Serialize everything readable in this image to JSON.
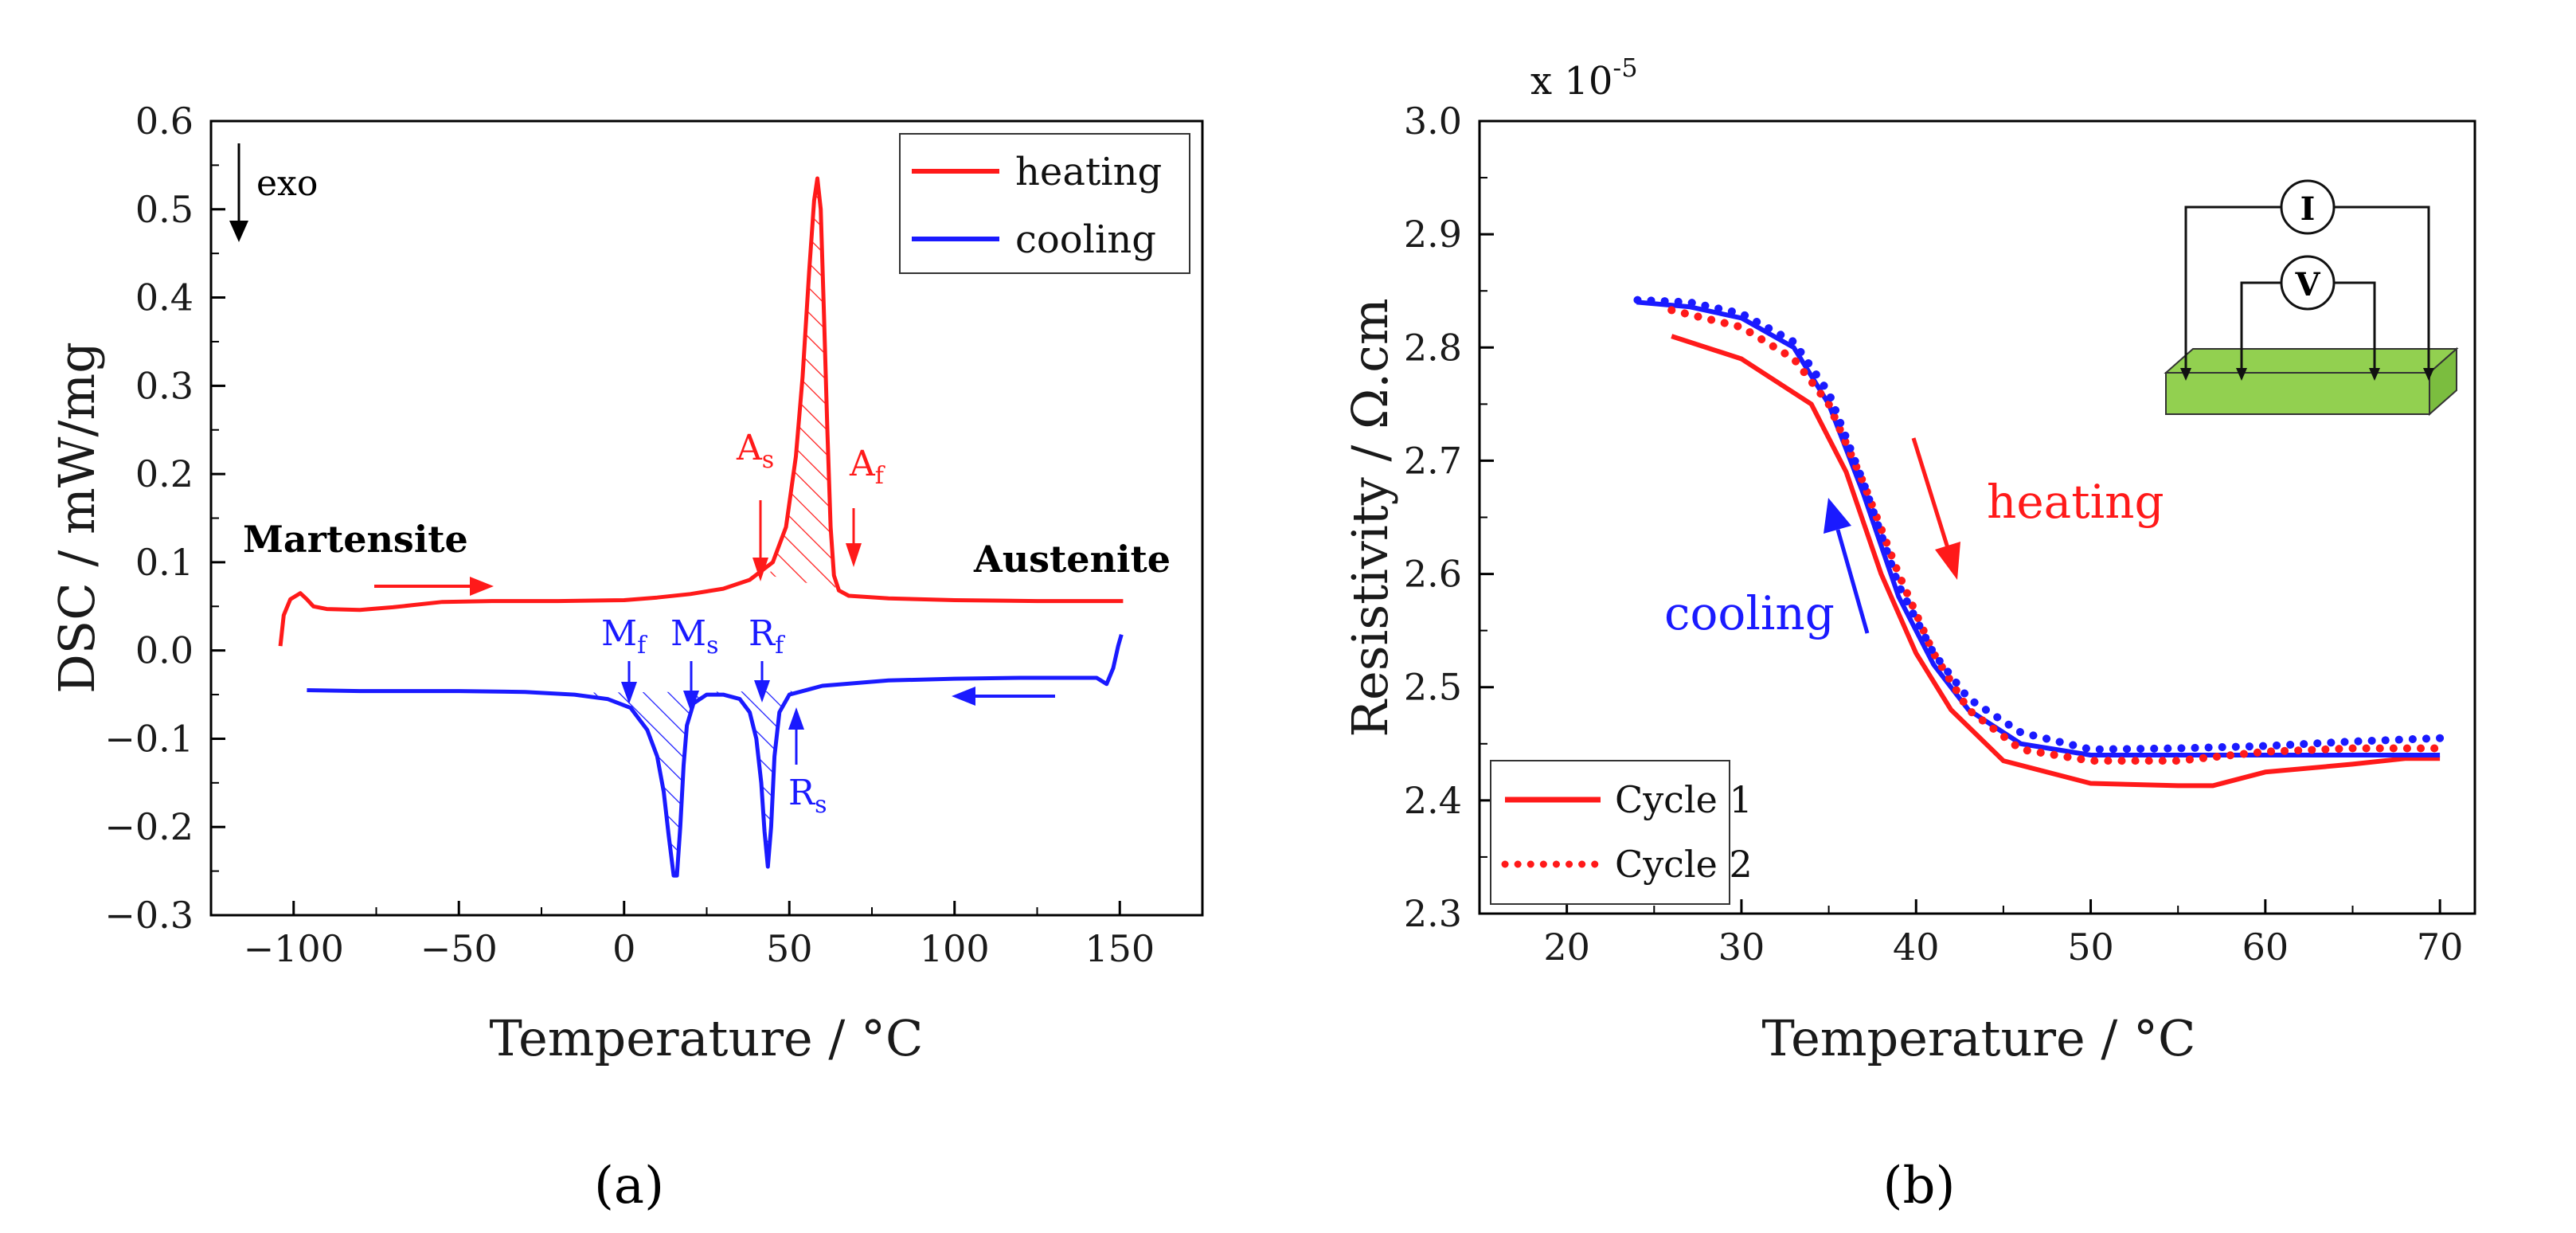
{
  "chart_data": [
    {
      "panel_label": "(a)",
      "type": "line",
      "xlabel": "Temperature / °C",
      "ylabel": "DSC / mW/mg",
      "xlim": [
        -125,
        175
      ],
      "ylim": [
        -0.3,
        0.6
      ],
      "xticks": [
        -100,
        -50,
        0,
        50,
        100,
        150
      ],
      "xtick_labels": [
        "−100",
        "−50",
        "0",
        "50",
        "100",
        "150"
      ],
      "yticks": [
        -0.3,
        -0.2,
        -0.1,
        0.0,
        0.1,
        0.2,
        0.3,
        0.4,
        0.5,
        0.6
      ],
      "ytick_labels": [
        "−0.3",
        "−0.2",
        "−0.1",
        "0.0",
        "0.1",
        "0.2",
        "0.3",
        "0.4",
        "0.5",
        "0.6"
      ],
      "legend": {
        "position": "top-right",
        "entries": [
          "heating",
          "cooling"
        ]
      },
      "series": [
        {
          "name": "heating",
          "color": "#ff1a1a",
          "points": [
            [
              -104,
              0.005
            ],
            [
              -103,
              0.04
            ],
            [
              -101,
              0.058
            ],
            [
              -98,
              0.065
            ],
            [
              -96,
              0.058
            ],
            [
              -94,
              0.05
            ],
            [
              -90,
              0.047
            ],
            [
              -80,
              0.046
            ],
            [
              -70,
              0.049
            ],
            [
              -55,
              0.055
            ],
            [
              -40,
              0.056
            ],
            [
              -20,
              0.056
            ],
            [
              0,
              0.057
            ],
            [
              10,
              0.06
            ],
            [
              20,
              0.064
            ],
            [
              30,
              0.07
            ],
            [
              38,
              0.08
            ],
            [
              45,
              0.1
            ],
            [
              49,
              0.14
            ],
            [
              52,
              0.22
            ],
            [
              54,
              0.31
            ],
            [
              56,
              0.43
            ],
            [
              57.5,
              0.51
            ],
            [
              58.5,
              0.535
            ],
            [
              59.5,
              0.5
            ],
            [
              60.5,
              0.38
            ],
            [
              61.5,
              0.25
            ],
            [
              62.5,
              0.14
            ],
            [
              63.5,
              0.085
            ],
            [
              65,
              0.068
            ],
            [
              68,
              0.062
            ],
            [
              80,
              0.059
            ],
            [
              100,
              0.057
            ],
            [
              125,
              0.056
            ],
            [
              151,
              0.056
            ]
          ]
        },
        {
          "name": "cooling",
          "color": "#1a1aff",
          "points": [
            [
              -96,
              -0.045
            ],
            [
              -80,
              -0.046
            ],
            [
              -50,
              -0.046
            ],
            [
              -30,
              -0.047
            ],
            [
              -15,
              -0.05
            ],
            [
              -5,
              -0.055
            ],
            [
              2,
              -0.065
            ],
            [
              7,
              -0.09
            ],
            [
              10,
              -0.12
            ],
            [
              12,
              -0.16
            ],
            [
              13.5,
              -0.21
            ],
            [
              15,
              -0.255
            ],
            [
              16,
              -0.255
            ],
            [
              17,
              -0.2
            ],
            [
              18,
              -0.13
            ],
            [
              19,
              -0.085
            ],
            [
              21,
              -0.06
            ],
            [
              25,
              -0.05
            ],
            [
              30,
              -0.05
            ],
            [
              35,
              -0.055
            ],
            [
              38,
              -0.07
            ],
            [
              40,
              -0.1
            ],
            [
              41.5,
              -0.15
            ],
            [
              42.5,
              -0.205
            ],
            [
              43.5,
              -0.245
            ],
            [
              44.5,
              -0.2
            ],
            [
              45.5,
              -0.12
            ],
            [
              47,
              -0.07
            ],
            [
              50,
              -0.05
            ],
            [
              60,
              -0.04
            ],
            [
              80,
              -0.034
            ],
            [
              100,
              -0.032
            ],
            [
              120,
              -0.031
            ],
            [
              135,
              -0.031
            ],
            [
              143,
              -0.031
            ],
            [
              146,
              -0.038
            ],
            [
              148,
              -0.02
            ],
            [
              149.5,
              0.005
            ],
            [
              150.5,
              0.018
            ]
          ]
        }
      ],
      "annotations": {
        "martensite": "Martensite",
        "austenite": "Austenite",
        "exo": "exo",
        "As_main": "A",
        "As_sub": "s",
        "Af_main": "A",
        "Af_sub": "f",
        "Mf_main": "M",
        "Mf_sub": "f",
        "Ms_main": "M",
        "Ms_sub": "s",
        "Rf_main": "R",
        "Rf_sub": "f",
        "Rs_main": "R",
        "Rs_sub": "s"
      }
    },
    {
      "panel_label": "(b)",
      "type": "line",
      "xlabel": "Temperature / °C",
      "ylabel": "Resistivity / Ω.cm",
      "scale_prefix": "x 10",
      "scale_exponent": "-5",
      "xlim": [
        15,
        72
      ],
      "ylim": [
        2.3,
        3.0
      ],
      "xticks": [
        20,
        30,
        40,
        50,
        60,
        70
      ],
      "xtick_labels": [
        "20",
        "30",
        "40",
        "50",
        "60",
        "70"
      ],
      "yticks": [
        2.3,
        2.4,
        2.5,
        2.6,
        2.7,
        2.8,
        2.9,
        3.0
      ],
      "ytick_labels": [
        "2.3",
        "2.4",
        "2.5",
        "2.6",
        "2.7",
        "2.8",
        "2.9",
        "3.0"
      ],
      "legend": {
        "position": "bottom-left",
        "entries": [
          "Cycle 1",
          "Cycle 2"
        ]
      },
      "series": [
        {
          "name": "Cycle 1 heating",
          "legend": "Cycle 1",
          "color": "#ff1a1a",
          "style": "solid",
          "points": [
            [
              26,
              2.81
            ],
            [
              30,
              2.79
            ],
            [
              34,
              2.75
            ],
            [
              36,
              2.69
            ],
            [
              38,
              2.6
            ],
            [
              40,
              2.53
            ],
            [
              42,
              2.48
            ],
            [
              45,
              2.435
            ],
            [
              50,
              2.415
            ],
            [
              55,
              2.413
            ],
            [
              57,
              2.413
            ],
            [
              60,
              2.425
            ],
            [
              65,
              2.432
            ],
            [
              68,
              2.437
            ],
            [
              70,
              2.437
            ]
          ]
        },
        {
          "name": "Cycle 1 cooling",
          "legend": "Cycle 1",
          "color": "#1a1aff",
          "style": "solid",
          "points": [
            [
              70,
              2.44
            ],
            [
              65,
              2.44
            ],
            [
              60,
              2.44
            ],
            [
              55,
              2.44
            ],
            [
              50,
              2.44
            ],
            [
              46,
              2.45
            ],
            [
              43,
              2.48
            ],
            [
              41,
              2.52
            ],
            [
              39,
              2.58
            ],
            [
              37,
              2.67
            ],
            [
              35,
              2.75
            ],
            [
              33,
              2.8
            ],
            [
              30,
              2.826
            ],
            [
              27,
              2.836
            ],
            [
              24,
              2.84
            ]
          ]
        },
        {
          "name": "Cycle 2 heating",
          "legend": "Cycle 2",
          "color": "#ff1a1a",
          "style": "dotted",
          "points": [
            [
              26,
              2.833
            ],
            [
              30,
              2.818
            ],
            [
              33,
              2.79
            ],
            [
              35,
              2.75
            ],
            [
              37,
              2.68
            ],
            [
              39,
              2.6
            ],
            [
              41,
              2.53
            ],
            [
              43,
              2.48
            ],
            [
              46,
              2.445
            ],
            [
              50,
              2.435
            ],
            [
              55,
              2.435
            ],
            [
              60,
              2.443
            ],
            [
              65,
              2.446
            ],
            [
              70,
              2.446
            ]
          ]
        },
        {
          "name": "Cycle 2 cooling",
          "legend": "Cycle 2",
          "color": "#1a1aff",
          "style": "dotted",
          "points": [
            [
              70,
              2.455
            ],
            [
              65,
              2.452
            ],
            [
              60,
              2.448
            ],
            [
              55,
              2.446
            ],
            [
              50,
              2.445
            ],
            [
              46,
              2.46
            ],
            [
              43,
              2.49
            ],
            [
              41,
              2.53
            ],
            [
              39,
              2.59
            ],
            [
              37,
              2.68
            ],
            [
              35,
              2.76
            ],
            [
              33,
              2.805
            ],
            [
              30,
              2.83
            ],
            [
              27,
              2.84
            ],
            [
              24,
              2.842
            ]
          ]
        }
      ],
      "annotations": {
        "heating": "heating",
        "cooling": "cooling",
        "current_symbol": "I",
        "voltage_symbol": "V"
      }
    }
  ]
}
